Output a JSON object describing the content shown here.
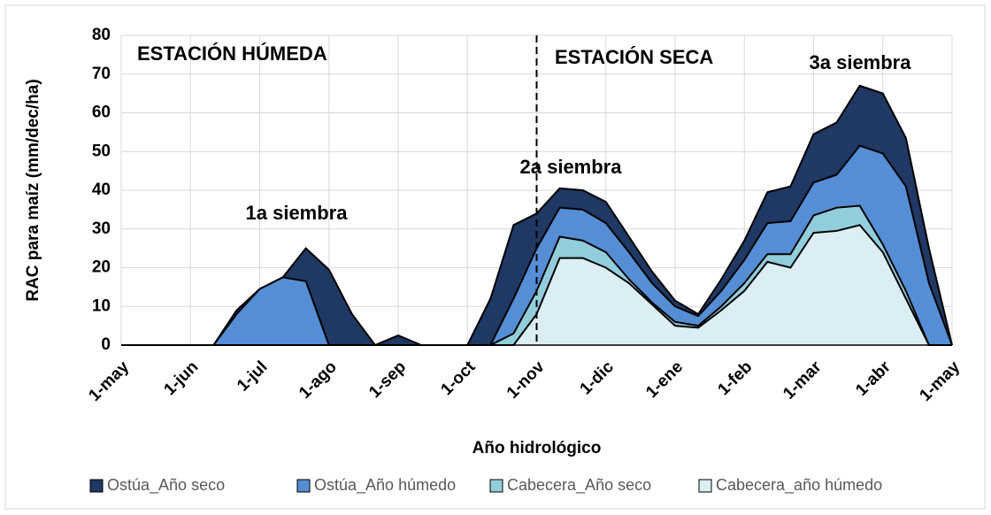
{
  "chart_data": {
    "type": "area",
    "annotations": [
      "ESTACIÓN HÚMEDA",
      "ESTACIÓN SECA",
      "1a siembra",
      "2a siembra",
      "3a siembra"
    ],
    "xlabel": "Año hidrológico",
    "ylabel": "RAC para maíz (mm/dec/ha)",
    "categories": [
      "1-may",
      null,
      null,
      "1-jun",
      null,
      null,
      "1-jul",
      null,
      null,
      "1-ago",
      null,
      null,
      "1-sep",
      null,
      null,
      "1-oct",
      null,
      null,
      "1-nov",
      null,
      null,
      "1-dic",
      null,
      null,
      "1-ene",
      null,
      null,
      "1-feb",
      null,
      null,
      "1-mar",
      null,
      null,
      "1-abr",
      null,
      null,
      "1-may"
    ],
    "series": [
      {
        "name": "Ostúa_Año seco",
        "color": "#1f3864",
        "values": [
          0,
          0,
          0,
          0,
          0,
          9,
          14.5,
          17.5,
          25,
          19.5,
          8,
          0,
          2.5,
          0,
          0,
          0,
          12,
          31,
          34,
          40.5,
          40,
          37,
          28,
          19,
          11.5,
          8,
          17,
          27,
          39.5,
          41,
          54.5,
          57.5,
          67,
          65,
          53.5,
          25,
          0
        ]
      },
      {
        "name": "Ostúa_Año húmedo",
        "color": "#558ed5",
        "values": [
          0,
          0,
          0,
          0,
          0,
          8,
          14.5,
          17.5,
          16.5,
          0,
          0,
          0,
          0,
          0,
          0,
          0,
          0,
          12,
          25,
          35.5,
          35,
          31.5,
          24,
          16,
          10,
          7.5,
          14,
          22,
          31.5,
          32,
          42,
          44,
          51.5,
          49.5,
          41,
          16,
          0
        ]
      },
      {
        "name": "Cabecera_Año seco",
        "color": "#92cddc",
        "values": [
          0,
          0,
          0,
          0,
          0,
          0,
          0,
          0,
          0,
          0,
          0,
          0,
          0,
          0,
          0,
          0,
          0,
          3,
          14,
          28,
          27,
          24,
          17,
          11,
          6,
          5,
          10,
          16,
          23.5,
          23.5,
          33.5,
          35.5,
          36,
          26,
          14,
          0,
          0
        ]
      },
      {
        "name": "Cabecera_año húmedo",
        "color": "#dbeef4",
        "values": [
          0,
          0,
          0,
          0,
          0,
          0,
          0,
          0,
          0,
          0,
          0,
          0,
          0,
          0,
          0,
          0,
          0,
          0,
          8,
          22.5,
          22.5,
          20,
          16,
          10.5,
          5,
          4.5,
          9,
          14,
          21.5,
          20,
          29,
          29.5,
          31,
          24,
          12,
          0,
          0
        ]
      }
    ],
    "ylim": [
      0,
      80
    ],
    "yticks": [
      0,
      10,
      20,
      30,
      40,
      50,
      60,
      70,
      80
    ],
    "grid": true,
    "legend": "bottom"
  }
}
